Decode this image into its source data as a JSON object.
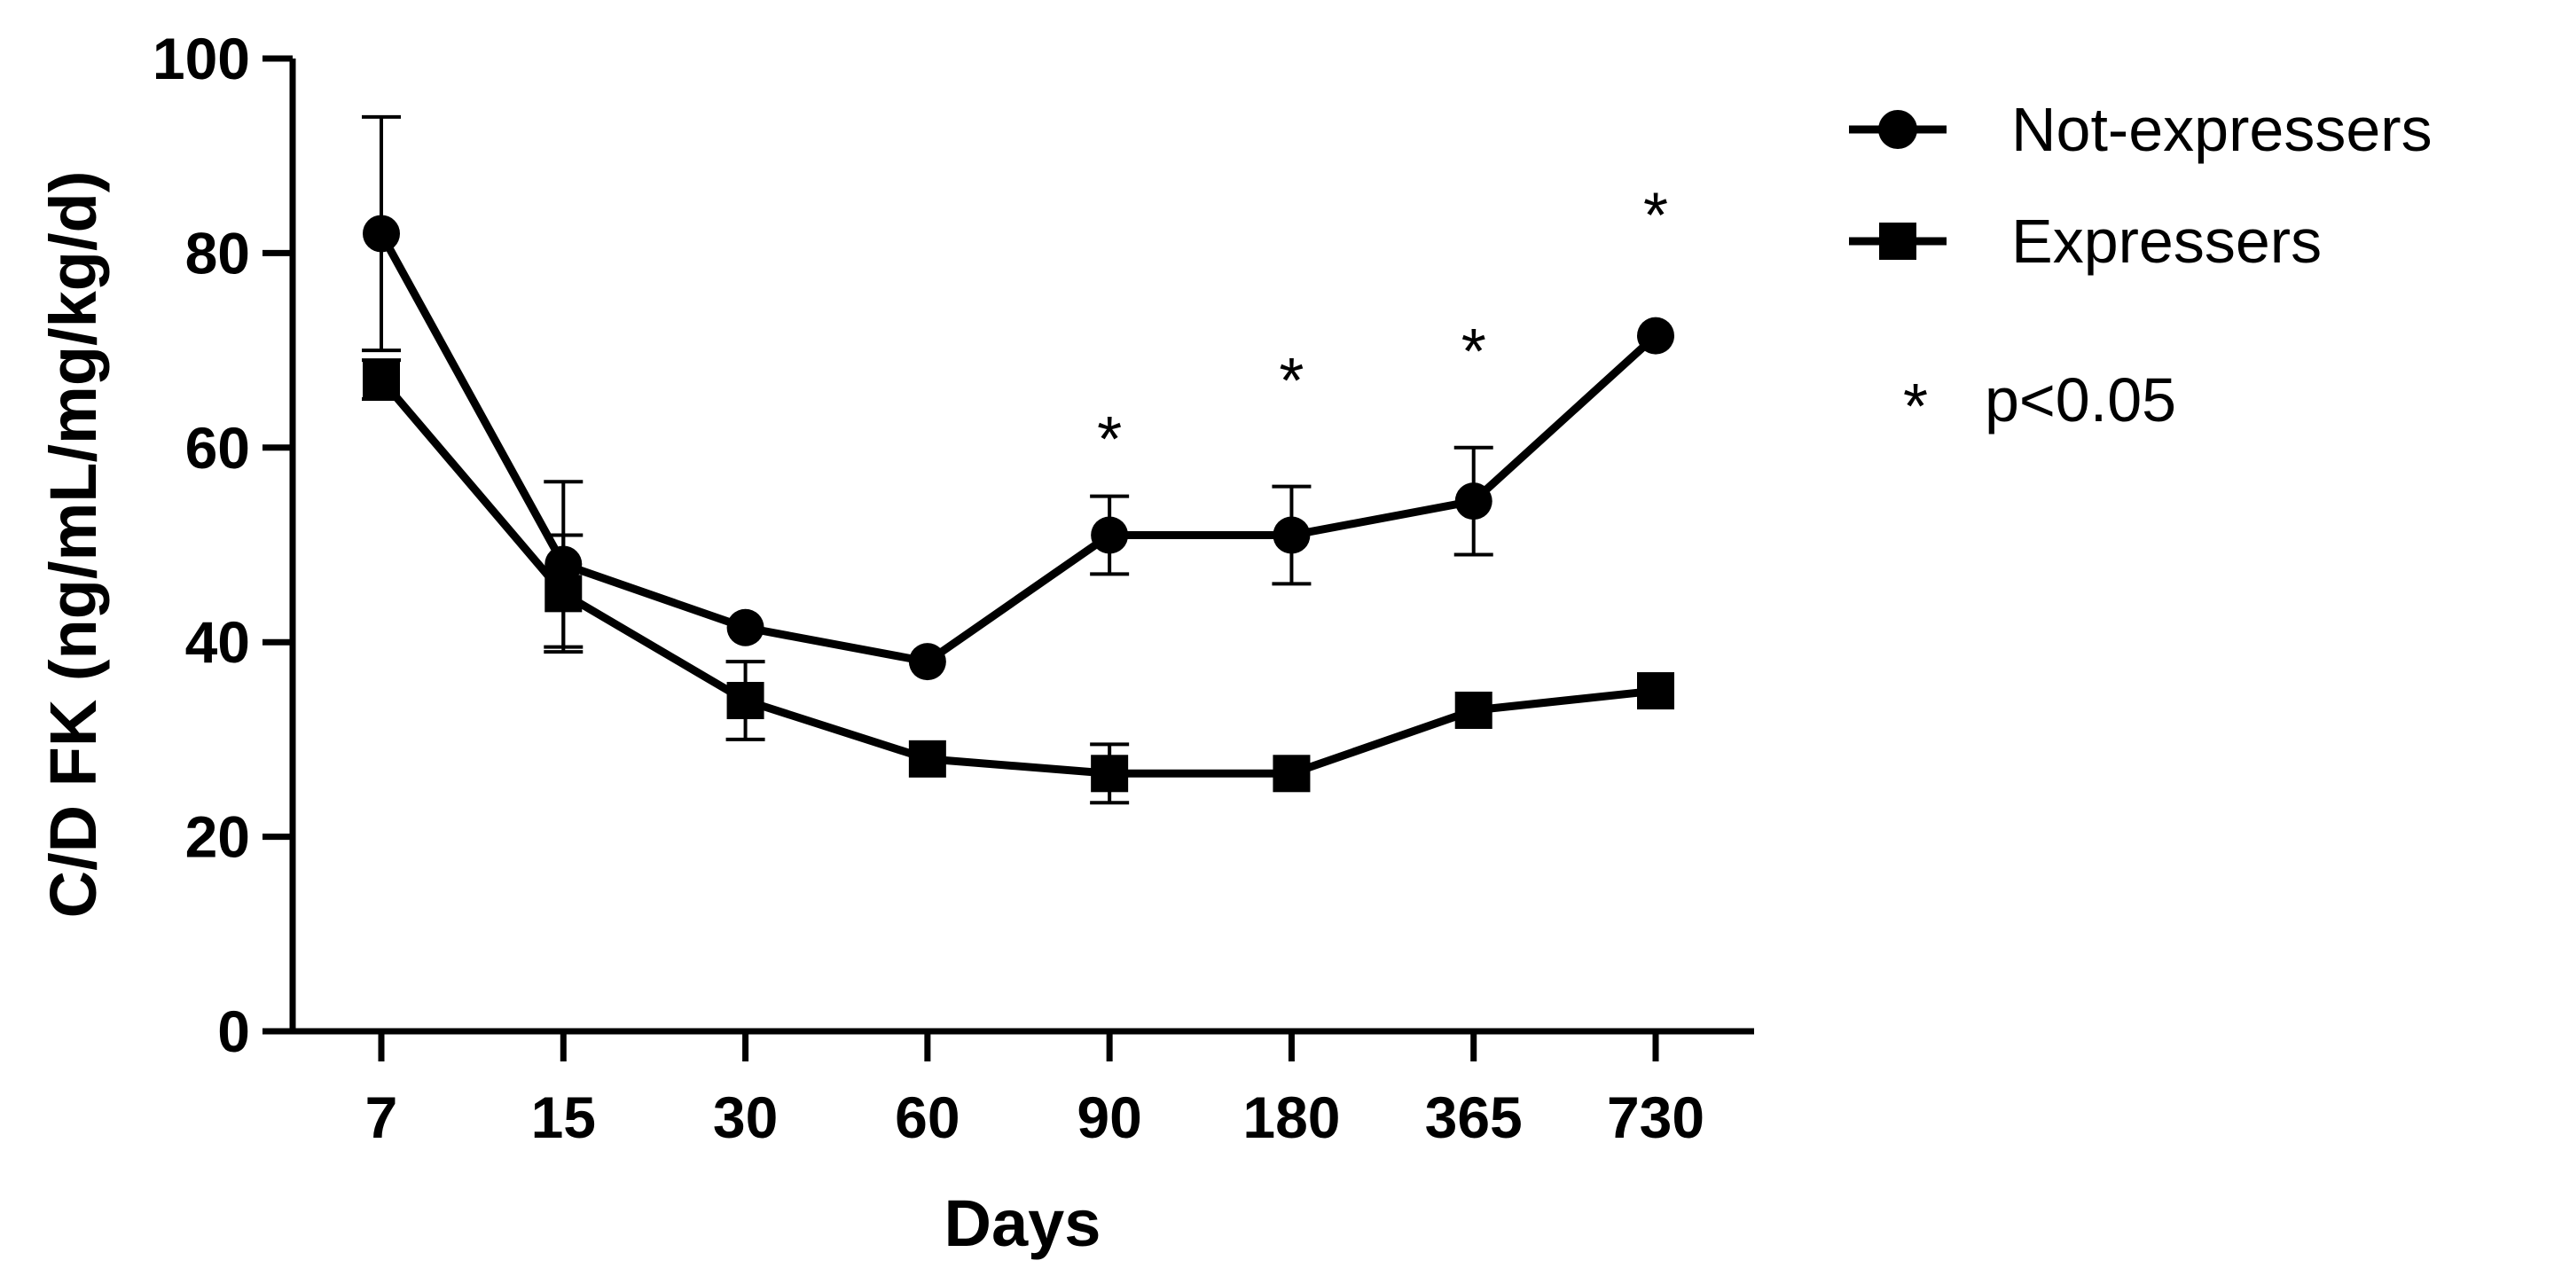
{
  "chart_data": {
    "type": "line",
    "title": "",
    "xlabel": "Days",
    "ylabel": "C/D FK (ng/mL/mg/kg/d)",
    "categories": [
      "7",
      "15",
      "30",
      "60",
      "90",
      "180",
      "365",
      "730"
    ],
    "ylim": [
      0,
      100
    ],
    "yticks": [
      "0",
      "20",
      "40",
      "60",
      "80",
      "100"
    ],
    "legend_position": "top-right",
    "series": [
      {
        "name": "Not-expressers",
        "marker": "circle",
        "values": [
          82,
          48,
          41.5,
          38,
          51,
          51,
          54.5,
          71.5
        ],
        "error": [
          12,
          8.5,
          0,
          0,
          4,
          5,
          5.5,
          0
        ]
      },
      {
        "name": "Expressers",
        "marker": "square",
        "values": [
          67,
          45,
          34,
          28,
          26.5,
          26.5,
          33,
          35
        ],
        "error": [
          2,
          6,
          4,
          0,
          3,
          0,
          0,
          0
        ]
      }
    ],
    "annotations": [
      {
        "category": "90",
        "y": 61,
        "text": "*"
      },
      {
        "category": "180",
        "y": 67,
        "text": "*"
      },
      {
        "category": "365",
        "y": 70,
        "text": "*"
      },
      {
        "category": "730",
        "y": 84,
        "text": "*"
      }
    ],
    "significance_note": {
      "symbol": "*",
      "text": "p<0.05"
    }
  }
}
